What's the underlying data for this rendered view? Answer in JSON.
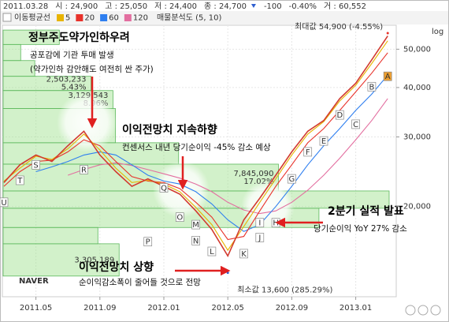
{
  "header": [
    "2011.03.28",
    "시 : 24,900",
    "고 : 25,050",
    "저 : 24,400",
    "종 : 24,700",
    "-100",
    "-0.40%",
    "거 : 60,552"
  ],
  "chart_data": {
    "type": "line",
    "legend_title": "이동평균선",
    "profile_title": "매물분석도 (5, 10)",
    "logo": "NAVER",
    "scale_label": "log",
    "log_scale": true,
    "grid": true,
    "x": [
      "2011.03",
      "2011.04",
      "2011.05",
      "2011.06",
      "2011.07",
      "2011.08",
      "2011.09",
      "2011.10",
      "2011.11",
      "2011.12",
      "2012.01",
      "2012.02",
      "2012.03",
      "2012.04",
      "2012.05",
      "2012.06",
      "2012.07",
      "2012.08",
      "2012.09",
      "2012.10",
      "2012.11",
      "2012.12",
      "2013.01",
      "2013.02",
      "2013.03"
    ],
    "xticks": [
      "2011.05",
      "2011.09",
      "2012.01",
      "2012.05",
      "2012.09",
      "2013.01"
    ],
    "ylim": [
      11880,
      56700
    ],
    "yticks": [
      {
        "value": 20000,
        "label": "20,000"
      },
      {
        "value": 30000,
        "label": "30,000"
      },
      {
        "value": 40000,
        "label": "40,000"
      },
      {
        "value": 50000,
        "label": "50,000"
      }
    ],
    "close": {
      "color": "#d23a2f",
      "values": [
        23000,
        25500,
        27000,
        26000,
        28500,
        31000,
        27000,
        24500,
        22500,
        23500,
        22500,
        21500,
        19500,
        17500,
        15000,
        18500,
        21000,
        24000,
        27500,
        31000,
        33000,
        37500,
        41000,
        47000,
        54000
      ]
    },
    "series": [
      {
        "name": "5",
        "color": "#e8b400",
        "values": [
          23200,
          25000,
          26800,
          26300,
          28000,
          30500,
          27800,
          25000,
          23000,
          23300,
          22800,
          21800,
          19900,
          18000,
          15500,
          17800,
          20500,
          23500,
          27000,
          30500,
          32800,
          37000,
          40500,
          46000,
          52500
        ]
      },
      {
        "name": "20",
        "color": "#e8322b",
        "values": [
          22500,
          24500,
          26000,
          26200,
          27500,
          29500,
          28500,
          26000,
          23800,
          23200,
          23000,
          22200,
          20500,
          18800,
          16500,
          16800,
          19500,
          22500,
          25500,
          29000,
          31500,
          35000,
          39000,
          43500,
          49000
        ]
      },
      {
        "name": "60",
        "color": "#2f7ff0",
        "values": [
          null,
          null,
          24500,
          25200,
          26000,
          27000,
          27500,
          27000,
          25500,
          24000,
          23200,
          22800,
          21800,
          20300,
          18500,
          17300,
          18000,
          20000,
          22500,
          25500,
          28500,
          31500,
          35000,
          38500,
          43000
        ]
      },
      {
        "name": "120",
        "color": "#e36fa0",
        "values": [
          null,
          null,
          null,
          null,
          24000,
          24800,
          25500,
          25800,
          25400,
          24800,
          24200,
          23600,
          22800,
          21800,
          20500,
          19600,
          19200,
          19500,
          20500,
          22000,
          24000,
          26500,
          29500,
          33000,
          37500
        ]
      }
    ],
    "profile": [
      {
        "low": 51400,
        "high": 55900,
        "volume": 1600000
      },
      {
        "low": 46800,
        "high": 51400,
        "volume": 500000
      },
      {
        "low": 42700,
        "high": 46800,
        "volume": 900000
      },
      {
        "low": 39300,
        "high": 42700,
        "volume": 2503233,
        "volume_label": "2,503,233",
        "share": 5.43,
        "share_label": "5.43%"
      },
      {
        "low": 35400,
        "high": 39300,
        "volume": 3129543,
        "volume_label": "3,129,543",
        "share": 8.96,
        "share_label": "8.96%"
      },
      {
        "low": 29000,
        "high": 35400,
        "volume": 3200000
      },
      {
        "low": 25600,
        "high": 29000,
        "volume": 5000000
      },
      {
        "low": 21900,
        "high": 25600,
        "volume": 7845090,
        "volume_label": "7,845,090",
        "share": 17.02,
        "share_label": "17.02%"
      },
      {
        "low": 19800,
        "high": 21900,
        "volume": 11000000
      },
      {
        "low": 17700,
        "high": 19800,
        "volume": 9000000
      },
      {
        "low": 16100,
        "high": 17700,
        "volume": 2700000
      },
      {
        "low": 13340,
        "high": 16100,
        "volume": 3305189,
        "volume_label": "3,305,189"
      }
    ],
    "max": {
      "x": "2013.03",
      "value": 54900,
      "label": "최대값 54,900 (-4.55%)",
      "color": "#e8322b"
    },
    "min": {
      "x": "2012.05",
      "value": 13600,
      "label": "최소값 13,600 (285.29%)",
      "color": "#2f5fd0"
    },
    "markers": [
      {
        "label": "U",
        "x": "2011.03",
        "y": 20500
      },
      {
        "label": "T",
        "x": "2011.04",
        "y": 23300
      },
      {
        "label": "S",
        "x": "2011.05",
        "y": 25500
      },
      {
        "label": "R",
        "x": "2011.08",
        "y": 24800
      },
      {
        "label": "P",
        "x": "2011.12",
        "y": 16300
      },
      {
        "label": "Q",
        "x": "2012.01",
        "y": 22300
      },
      {
        "label": "O",
        "x": "2012.02",
        "y": 18800
      },
      {
        "label": "M",
        "x": "2012.03",
        "y": 18000
      },
      {
        "label": "N",
        "x": "2012.03",
        "y": 16400
      },
      {
        "label": "L",
        "x": "2012.04",
        "y": 15400
      },
      {
        "label": "K",
        "x": "2012.06",
        "y": 15200
      },
      {
        "label": "J",
        "x": "2012.07",
        "y": 16700
      },
      {
        "label": "I",
        "x": "2012.07",
        "y": 18200
      },
      {
        "label": "H",
        "x": "2012.08",
        "y": 18200
      },
      {
        "label": "G",
        "x": "2012.09",
        "y": 23500
      },
      {
        "label": "F",
        "x": "2012.10",
        "y": 27500
      },
      {
        "label": "E",
        "x": "2012.11",
        "y": 29300
      },
      {
        "label": "D",
        "x": "2012.12",
        "y": 34100
      },
      {
        "label": "C",
        "x": "2013.01",
        "y": 32300
      },
      {
        "label": "B",
        "x": "2013.02",
        "y": 40200
      },
      {
        "label": "A",
        "x": "2013.03",
        "y": 42700,
        "color": "#f0a030"
      }
    ]
  },
  "annotations": [
    {
      "title": "정부주도약가인하우려",
      "lines": [
        "공포감에 기관 투매 발생",
        "(약가인하 감안해도 여전히 싼 주가)"
      ]
    },
    {
      "title": "이익전망치 지속하향",
      "lines": [
        "컨센서스 내년 당기순이익 -45% 감소 예상"
      ]
    },
    {
      "title": "2분기 실적 발표",
      "lines": [
        "당기순이익 YoY 27% 감소"
      ]
    },
    {
      "title": "이익전망치 상향",
      "lines": [
        "순이익감소폭이 줄어들 것으로 전망"
      ]
    }
  ]
}
